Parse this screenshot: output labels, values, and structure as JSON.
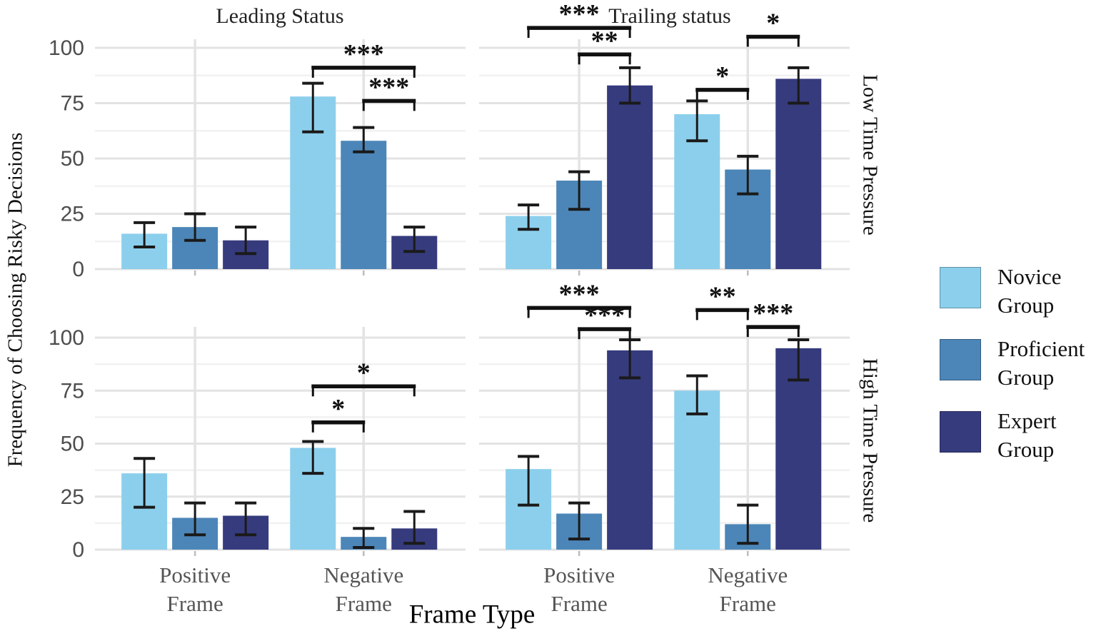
{
  "colors": {
    "novice": "#8CCFEC",
    "proficient": "#4C86B8",
    "expert": "#363B7D",
    "error_bar": "#1a1a1a",
    "bracket": "#111111",
    "grid_major": "#e3e3e3",
    "grid_minor": "#f1f1f1",
    "axis_tick_text": "#4d4d4d",
    "category_text": "#555555"
  },
  "chart_data": {
    "type": "bar",
    "title": "",
    "xlabel": "Frame Type",
    "ylabel": "Frequency of Choosing Risky Decisions",
    "facet_cols": [
      "Leading Status",
      "Trailing status"
    ],
    "facet_rows": [
      "Low Time Pressure",
      "High Time Pressure"
    ],
    "categories": [
      "Positive Frame",
      "Negative Frame"
    ],
    "series_names": [
      "Novice Group",
      "Proficient Group",
      "Expert Group"
    ],
    "ylim": [
      0,
      100
    ],
    "y_ticks": [
      0,
      25,
      50,
      75,
      100
    ],
    "grid": "on",
    "legend_position": "right",
    "panels": [
      {
        "row": "Low Time Pressure",
        "col": "Leading Status",
        "groups": [
          {
            "category": "Positive Frame",
            "bars": [
              {
                "series": "Novice Group",
                "mean": 16,
                "lo": 10,
                "hi": 21
              },
              {
                "series": "Proficient Group",
                "mean": 19,
                "lo": 13,
                "hi": 25
              },
              {
                "series": "Expert Group",
                "mean": 13,
                "lo": 7,
                "hi": 19
              }
            ]
          },
          {
            "category": "Negative Frame",
            "bars": [
              {
                "series": "Novice Group",
                "mean": 78,
                "lo": 62,
                "hi": 84
              },
              {
                "series": "Proficient Group",
                "mean": 58,
                "lo": 53,
                "hi": 64
              },
              {
                "series": "Expert Group",
                "mean": 15,
                "lo": 8,
                "hi": 19
              }
            ]
          }
        ],
        "brackets": [
          {
            "category": 1,
            "from": 0,
            "to": 2,
            "label": "***",
            "y": 91
          },
          {
            "category": 1,
            "from": 1,
            "to": 2,
            "label": "***",
            "y": 76
          }
        ]
      },
      {
        "row": "Low Time Pressure",
        "col": "Trailing status",
        "groups": [
          {
            "category": "Positive Frame",
            "bars": [
              {
                "series": "Novice Group",
                "mean": 24,
                "lo": 18,
                "hi": 29
              },
              {
                "series": "Proficient Group",
                "mean": 40,
                "lo": 27,
                "hi": 44
              },
              {
                "series": "Expert Group",
                "mean": 83,
                "lo": 75,
                "hi": 91
              }
            ]
          },
          {
            "category": "Negative Frame",
            "bars": [
              {
                "series": "Novice Group",
                "mean": 70,
                "lo": 58,
                "hi": 76
              },
              {
                "series": "Proficient Group",
                "mean": 45,
                "lo": 34,
                "hi": 51
              },
              {
                "series": "Expert Group",
                "mean": 86,
                "lo": 75,
                "hi": 91
              }
            ]
          }
        ],
        "brackets": [
          {
            "category": 0,
            "from": 0,
            "to": 2,
            "label": "***",
            "y": 109
          },
          {
            "category": 0,
            "from": 1,
            "to": 2,
            "label": "**",
            "y": 97
          },
          {
            "category": 1,
            "from": 0,
            "to": 1,
            "label": "*",
            "y": 81
          },
          {
            "category": 1,
            "from": 1,
            "to": 2,
            "label": "*",
            "y": 105
          }
        ]
      },
      {
        "row": "High Time Pressure",
        "col": "Leading Status",
        "groups": [
          {
            "category": "Positive Frame",
            "bars": [
              {
                "series": "Novice Group",
                "mean": 36,
                "lo": 20,
                "hi": 43
              },
              {
                "series": "Proficient Group",
                "mean": 15,
                "lo": 7,
                "hi": 22
              },
              {
                "series": "Expert Group",
                "mean": 16,
                "lo": 7,
                "hi": 22
              }
            ]
          },
          {
            "category": "Negative Frame",
            "bars": [
              {
                "series": "Novice Group",
                "mean": 48,
                "lo": 36,
                "hi": 51
              },
              {
                "series": "Proficient Group",
                "mean": 6,
                "lo": 1,
                "hi": 10
              },
              {
                "series": "Expert Group",
                "mean": 10,
                "lo": 3,
                "hi": 18
              }
            ]
          }
        ],
        "brackets": [
          {
            "category": 1,
            "from": 0,
            "to": 2,
            "label": "*",
            "y": 77
          },
          {
            "category": 1,
            "from": 0,
            "to": 1,
            "label": "*",
            "y": 60
          }
        ]
      },
      {
        "row": "High Time Pressure",
        "col": "Trailing status",
        "groups": [
          {
            "category": "Positive Frame",
            "bars": [
              {
                "series": "Novice Group",
                "mean": 38,
                "lo": 21,
                "hi": 44
              },
              {
                "series": "Proficient Group",
                "mean": 17,
                "lo": 5,
                "hi": 22
              },
              {
                "series": "Expert Group",
                "mean": 94,
                "lo": 81,
                "hi": 99
              }
            ]
          },
          {
            "category": "Negative Frame",
            "bars": [
              {
                "series": "Novice Group",
                "mean": 75,
                "lo": 64,
                "hi": 82
              },
              {
                "series": "Proficient Group",
                "mean": 12,
                "lo": 3,
                "hi": 21
              },
              {
                "series": "Expert Group",
                "mean": 95,
                "lo": 80,
                "hi": 99
              }
            ]
          }
        ],
        "brackets": [
          {
            "category": 0,
            "from": 0,
            "to": 2,
            "label": "***",
            "y": 114
          },
          {
            "category": 0,
            "from": 1,
            "to": 2,
            "label": "***",
            "y": 104
          },
          {
            "category": 1,
            "from": 0,
            "to": 1,
            "label": "**",
            "y": 113
          },
          {
            "category": 1,
            "from": 1,
            "to": 2,
            "label": "***",
            "y": 105
          }
        ]
      }
    ]
  },
  "legend": {
    "items": [
      {
        "label": "Novice Group",
        "color_key": "novice"
      },
      {
        "label": "Proficient Group",
        "color_key": "proficient"
      },
      {
        "label": "Expert Group",
        "color_key": "expert"
      }
    ]
  }
}
